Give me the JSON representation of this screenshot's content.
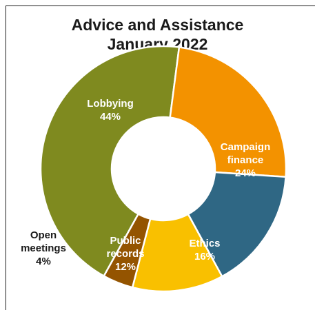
{
  "chart_data": {
    "type": "pie",
    "title": "Advice and Assistance",
    "subtitle": "January 2022",
    "slices": [
      {
        "label": "Lobbying",
        "value": 44,
        "value_label": "44%",
        "color": "#7f8a1f"
      },
      {
        "label": "Campaign finance",
        "value": 24,
        "value_label": "24%",
        "color": "#f39200"
      },
      {
        "label": "Ethics",
        "value": 16,
        "value_label": "16%",
        "color": "#2f6784"
      },
      {
        "label": "Public records",
        "value": 12,
        "value_label": "12%",
        "color": "#f9c000"
      },
      {
        "label": "Open meetings",
        "value": 4,
        "value_label": "4%",
        "color": "#945400"
      }
    ]
  }
}
